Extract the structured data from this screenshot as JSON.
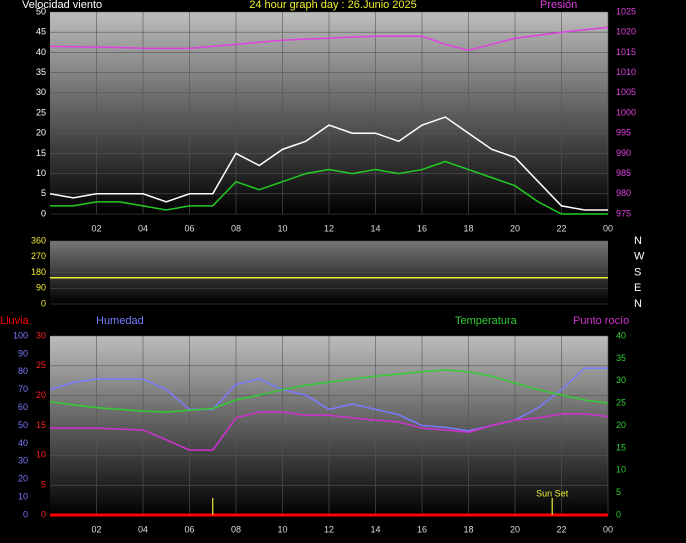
{
  "chart_data": [
    {
      "type": "line",
      "title": "24 hour graph day : 26.Junio 2025",
      "ylabel": "Velocidad viento",
      "y2label": "Presión",
      "x": [
        0,
        1,
        2,
        3,
        4,
        5,
        6,
        7,
        8,
        9,
        10,
        11,
        12,
        13,
        14,
        15,
        16,
        17,
        18,
        19,
        20,
        21,
        22,
        23,
        24
      ],
      "xlim": [
        0,
        24
      ],
      "xticks": [
        {
          "value": 2,
          "label": "02"
        },
        {
          "value": 4,
          "label": "04"
        },
        {
          "value": 6,
          "label": "06"
        },
        {
          "value": 8,
          "label": "08"
        },
        10,
        12,
        14,
        16,
        18,
        20,
        22,
        {
          "value": 24,
          "label": "00"
        }
      ],
      "ylim": [
        0,
        50
      ],
      "yticks": [
        0,
        5,
        10,
        15,
        20,
        25,
        30,
        35,
        40,
        45,
        50
      ],
      "ycolor": "#ffffff",
      "y2lim": [
        975,
        1025
      ],
      "y2ticks": [
        975,
        980,
        985,
        990,
        995,
        1000,
        1005,
        1010,
        1015,
        1020,
        1025
      ],
      "y2color": "#e040e0",
      "grid": true,
      "series": [
        {
          "color": "#ffffff",
          "axis": "y",
          "values": [
            5,
            4,
            5,
            5,
            5,
            3,
            5,
            5,
            15,
            12,
            16,
            18,
            22,
            20,
            20,
            18,
            22,
            24,
            20,
            16,
            14,
            8,
            2,
            1,
            1
          ]
        },
        {
          "color": "#22cc22",
          "axis": "y",
          "values": [
            2,
            2,
            3,
            3,
            2,
            1,
            2,
            2,
            8,
            6,
            8,
            10,
            11,
            10,
            11,
            10,
            11,
            13,
            11,
            9,
            7,
            3,
            0,
            0,
            0
          ]
        },
        {
          "color": "#e040e0",
          "axis": "y2",
          "values": [
            1016.5,
            1016.4,
            1016.3,
            1016.2,
            1016,
            1016,
            1016,
            1016.5,
            1017,
            1017.5,
            1018,
            1018.3,
            1018.5,
            1018.8,
            1019,
            1019,
            1019,
            1017,
            1015.5,
            1017,
            1018.5,
            1019.2,
            1020,
            1020.6,
            1021.2
          ]
        }
      ]
    },
    {
      "type": "line",
      "x": [
        0,
        1,
        2,
        3,
        4,
        5,
        6,
        7,
        8,
        9,
        10,
        11,
        12,
        13,
        14,
        15,
        16,
        17,
        18,
        19,
        20,
        21,
        22,
        23,
        24
      ],
      "xlim": [
        0,
        24
      ],
      "ylim": [
        0,
        360
      ],
      "yticks": [
        0,
        90,
        180,
        270,
        360
      ],
      "ycolor": "#eeee33",
      "y2lim": [
        0,
        360
      ],
      "y2ticks": [
        {
          "value": 360,
          "label": "N"
        },
        {
          "value": 270,
          "label": "W"
        },
        {
          "value": 180,
          "label": "S"
        },
        {
          "value": 90,
          "label": "E"
        },
        {
          "value": 0,
          "label": "N"
        }
      ],
      "y2color": "#ffffff",
      "grid": true,
      "series": [
        {
          "color": "#eeee33",
          "axis": "y",
          "values": [
            150,
            150,
            150,
            150,
            150,
            150,
            150,
            150,
            150,
            150,
            150,
            150,
            150,
            150,
            150,
            150,
            150,
            150,
            150,
            150,
            150,
            150,
            150,
            150,
            150
          ]
        }
      ]
    },
    {
      "type": "line",
      "x": [
        0,
        1,
        2,
        3,
        4,
        5,
        6,
        7,
        8,
        9,
        10,
        11,
        12,
        13,
        14,
        15,
        16,
        17,
        18,
        19,
        20,
        21,
        22,
        23,
        24
      ],
      "xlim": [
        0,
        24
      ],
      "xticks": [
        {
          "value": 2,
          "label": "02"
        },
        {
          "value": 4,
          "label": "04"
        },
        {
          "value": 6,
          "label": "06"
        },
        {
          "value": 8,
          "label": "08"
        },
        10,
        12,
        14,
        16,
        18,
        20,
        22,
        {
          "value": 24,
          "label": "00"
        }
      ],
      "ylim": [
        0,
        30
      ],
      "yticks": [
        0,
        5,
        10,
        15,
        20,
        25,
        30
      ],
      "ycolor": "#ff2020",
      "y3lim": [
        0,
        100
      ],
      "y3ticks": [
        0,
        10,
        20,
        30,
        40,
        50,
        60,
        70,
        80,
        90,
        100
      ],
      "y3color": "#7a7aff",
      "y2lim": [
        0,
        40
      ],
      "y2ticks": [
        0,
        5,
        10,
        15,
        20,
        25,
        30,
        35,
        40
      ],
      "y2color": "#33cc33",
      "grid": true,
      "series": [
        {
          "name": "Lluvia",
          "color": "#ff0000",
          "axis": "y",
          "values": [
            0,
            0,
            0,
            0,
            0,
            0,
            0,
            0,
            0,
            0,
            0,
            0,
            0,
            0,
            0,
            0,
            0,
            0,
            0,
            0,
            0,
            0,
            0,
            0,
            0
          ]
        },
        {
          "name": "Humedad",
          "color": "#7a7aff",
          "axis": "y3",
          "values": [
            70,
            74,
            76,
            76,
            76,
            70,
            59,
            59,
            73,
            76,
            70,
            67,
            59,
            62,
            59,
            56,
            50,
            49,
            47,
            50,
            53,
            60,
            70,
            82,
            82
          ]
        },
        {
          "name": "Temperatura",
          "color": "#33cc33",
          "axis": "y2",
          "values": [
            25.3,
            24.6,
            24,
            23.6,
            23.2,
            23,
            23.4,
            23.8,
            25.7,
            26.8,
            28,
            29,
            29.7,
            30.4,
            31,
            31.5,
            32,
            32.4,
            32,
            31,
            29.5,
            28,
            26.8,
            25.7,
            25
          ]
        },
        {
          "name": "Punto rocío",
          "color": "#d030d0",
          "axis": "y2",
          "values": [
            19.4,
            19.4,
            19.4,
            19.2,
            19,
            16.8,
            14.5,
            14.5,
            21.7,
            23,
            23,
            22.3,
            22.3,
            21.7,
            21.2,
            20.8,
            19.4,
            19,
            18.5,
            20,
            21.2,
            21.7,
            22.6,
            22.6,
            22
          ]
        }
      ],
      "annotations": [
        {
          "x": 7.0
        },
        {
          "x": 21.6,
          "label": "Sun Set"
        }
      ]
    }
  ]
}
